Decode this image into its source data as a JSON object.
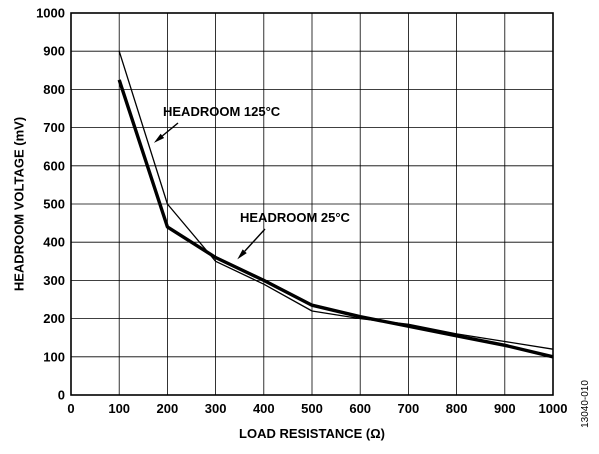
{
  "chart_data": {
    "type": "line",
    "title": "",
    "xlabel": "LOAD RESISTANCE (Ω)",
    "ylabel": "HEADROOM VOLTAGE (mV)",
    "xlim": [
      0,
      1000
    ],
    "ylim": [
      0,
      1000
    ],
    "x_ticks": [
      0,
      100,
      200,
      300,
      400,
      500,
      600,
      700,
      800,
      900,
      1000
    ],
    "y_ticks": [
      0,
      100,
      200,
      300,
      400,
      500,
      600,
      700,
      800,
      900,
      1000
    ],
    "grid": true,
    "legend": "none",
    "series": [
      {
        "name": "HEADROOM 25°C",
        "line_style": "thick",
        "x": [
          100,
          200,
          300,
          400,
          500,
          600,
          700,
          800,
          900,
          1000
        ],
        "values": [
          825,
          440,
          360,
          300,
          235,
          205,
          180,
          155,
          130,
          100
        ]
      },
      {
        "name": "HEADROOM 125°C",
        "line_style": "thin",
        "x": [
          100,
          200,
          300,
          400,
          500,
          600,
          700,
          800,
          900,
          1000
        ],
        "values": [
          900,
          500,
          350,
          290,
          220,
          200,
          185,
          160,
          140,
          120
        ]
      }
    ],
    "annotations": [
      {
        "text": "HEADROOM 125°C",
        "target_series": "HEADROOM 125°C",
        "target": [
          172,
          660
        ]
      },
      {
        "text": "HEADROOM 25°C",
        "target_series": "HEADROOM 25°C",
        "target": [
          345,
          355
        ]
      }
    ],
    "figure_id": "13040-010",
    "line_color": "#000000"
  }
}
